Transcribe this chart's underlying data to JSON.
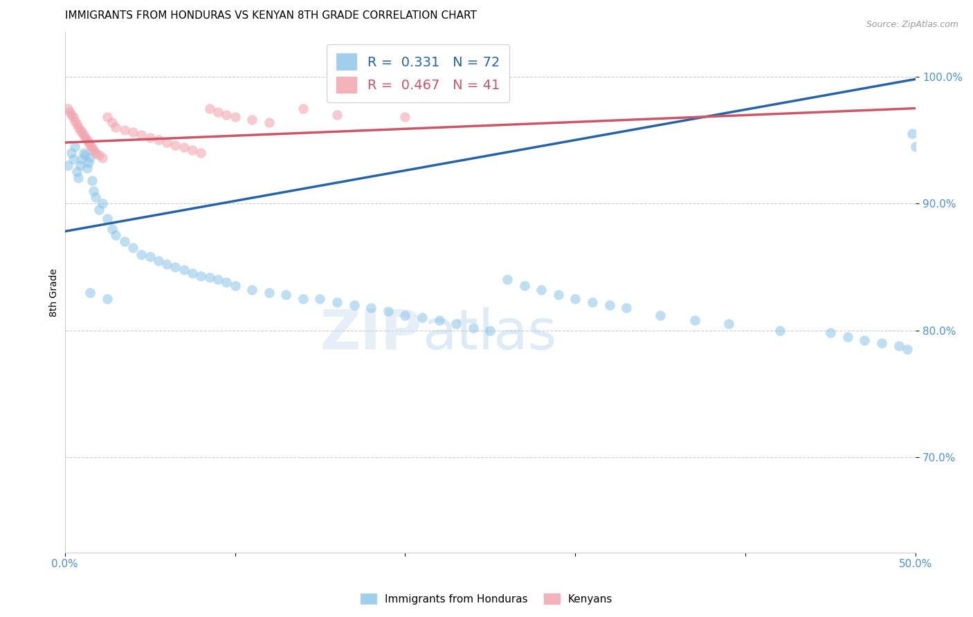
{
  "title": "IMMIGRANTS FROM HONDURAS VS KENYAN 8TH GRADE CORRELATION CHART",
  "source": "Source: ZipAtlas.com",
  "ylabel": "8th Grade",
  "ytick_labels": [
    "70.0%",
    "80.0%",
    "90.0%",
    "100.0%"
  ],
  "ytick_values": [
    0.7,
    0.8,
    0.9,
    1.0
  ],
  "xlim": [
    0.0,
    0.5
  ],
  "ylim": [
    0.625,
    1.035
  ],
  "legend_r1": "0.331",
  "legend_n1": "72",
  "legend_r2": "0.467",
  "legend_n2": "41",
  "watermark_zip": "ZIP",
  "watermark_atlas": "atlas",
  "scatter_blue_color": "#89C4E8",
  "scatter_pink_color": "#F2A0AA",
  "line_blue_color": "#2563A8",
  "line_pink_color": "#CC5566",
  "blue_x": [
    0.002,
    0.004,
    0.005,
    0.006,
    0.007,
    0.008,
    0.009,
    0.01,
    0.011,
    0.012,
    0.013,
    0.014,
    0.015,
    0.016,
    0.017,
    0.018,
    0.02,
    0.022,
    0.025,
    0.028,
    0.03,
    0.035,
    0.04,
    0.045,
    0.05,
    0.055,
    0.06,
    0.065,
    0.07,
    0.075,
    0.08,
    0.085,
    0.09,
    0.095,
    0.1,
    0.11,
    0.12,
    0.13,
    0.14,
    0.15,
    0.16,
    0.17,
    0.18,
    0.19,
    0.2,
    0.21,
    0.22,
    0.23,
    0.24,
    0.25,
    0.26,
    0.27,
    0.28,
    0.29,
    0.3,
    0.31,
    0.32,
    0.33,
    0.35,
    0.37,
    0.39,
    0.42,
    0.45,
    0.46,
    0.47,
    0.48,
    0.49,
    0.495,
    0.498,
    0.5,
    0.015,
    0.025
  ],
  "blue_y": [
    0.93,
    0.94,
    0.935,
    0.945,
    0.925,
    0.92,
    0.93,
    0.935,
    0.94,
    0.938,
    0.928,
    0.932,
    0.936,
    0.918,
    0.91,
    0.905,
    0.895,
    0.9,
    0.888,
    0.88,
    0.875,
    0.87,
    0.865,
    0.86,
    0.858,
    0.855,
    0.852,
    0.85,
    0.848,
    0.845,
    0.843,
    0.842,
    0.84,
    0.838,
    0.835,
    0.832,
    0.83,
    0.828,
    0.825,
    0.825,
    0.822,
    0.82,
    0.818,
    0.815,
    0.812,
    0.81,
    0.808,
    0.805,
    0.802,
    0.8,
    0.84,
    0.835,
    0.832,
    0.828,
    0.825,
    0.822,
    0.82,
    0.818,
    0.812,
    0.808,
    0.805,
    0.8,
    0.798,
    0.795,
    0.792,
    0.79,
    0.788,
    0.785,
    0.955,
    0.945,
    0.83,
    0.825
  ],
  "pink_x": [
    0.002,
    0.003,
    0.004,
    0.005,
    0.006,
    0.007,
    0.008,
    0.009,
    0.01,
    0.011,
    0.012,
    0.013,
    0.014,
    0.015,
    0.016,
    0.017,
    0.018,
    0.02,
    0.022,
    0.025,
    0.028,
    0.03,
    0.035,
    0.04,
    0.045,
    0.05,
    0.055,
    0.06,
    0.065,
    0.07,
    0.075,
    0.08,
    0.085,
    0.09,
    0.095,
    0.1,
    0.11,
    0.12,
    0.14,
    0.16,
    0.2
  ],
  "pink_y": [
    0.975,
    0.972,
    0.97,
    0.968,
    0.965,
    0.963,
    0.96,
    0.958,
    0.956,
    0.954,
    0.952,
    0.95,
    0.948,
    0.946,
    0.944,
    0.942,
    0.94,
    0.938,
    0.936,
    0.968,
    0.964,
    0.96,
    0.958,
    0.956,
    0.954,
    0.952,
    0.95,
    0.948,
    0.946,
    0.944,
    0.942,
    0.94,
    0.975,
    0.972,
    0.97,
    0.968,
    0.966,
    0.964,
    0.975,
    0.97,
    0.968
  ],
  "blue_line_x": [
    0.0,
    0.5
  ],
  "blue_line_y": [
    0.878,
    0.998
  ],
  "pink_line_x": [
    0.0,
    0.5
  ],
  "pink_line_y": [
    0.948,
    0.975
  ],
  "title_fontsize": 11,
  "tick_label_color": "#4A90D9",
  "grid_color": "#CCCCCC",
  "xtick_positions": [
    0.0,
    0.1,
    0.2,
    0.3,
    0.4,
    0.5
  ]
}
